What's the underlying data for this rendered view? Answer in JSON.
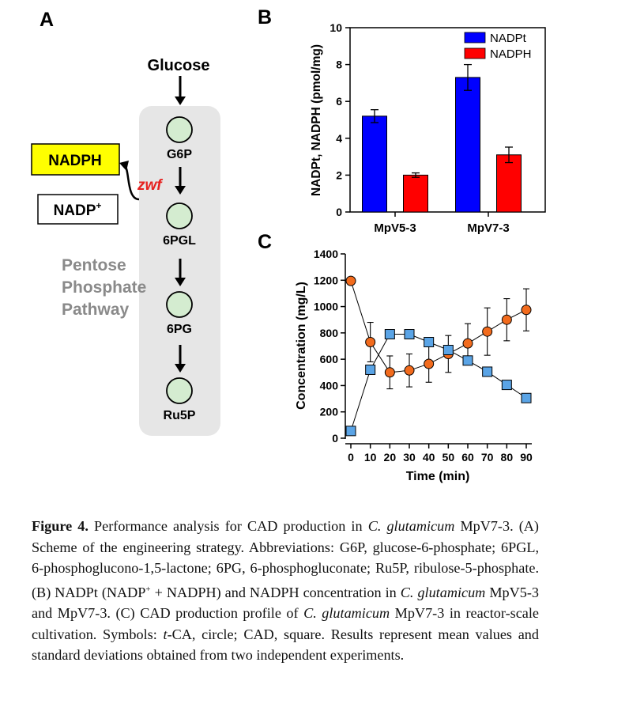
{
  "panel_a": {
    "label": "A",
    "glucose": "Glucose",
    "nodes": [
      "G6P",
      "6PGL",
      "6PG",
      "Ru5P"
    ],
    "nadph": "NADPH",
    "nadp_main": "NADP",
    "nadp_sup": "+",
    "enzyme": "zwf",
    "pathway_lines": [
      "Pentose",
      "Phosphate",
      "Pathway"
    ],
    "colors": {
      "nadph_box": "#ffff00",
      "node_fill": "#d4ecd0",
      "pathway_bg": "#e6e6e6",
      "enzyme": "#e6211f",
      "pathway_text": "#8a8a8a"
    }
  },
  "panel_b": {
    "label": "B",
    "chart_data": {
      "type": "bar",
      "categories": [
        "MpV5-3",
        "MpV7-3"
      ],
      "series": [
        {
          "name": "NADPt",
          "color": "#0000ff",
          "values": [
            5.2,
            7.3
          ],
          "errors": [
            0.35,
            0.7
          ]
        },
        {
          "name": "NADPH",
          "color": "#ff0000",
          "values": [
            2.0,
            3.1
          ],
          "errors": [
            0.12,
            0.42
          ]
        }
      ],
      "ylabel": "NADPt, NADPH (pmol/mg)",
      "xlabel": "",
      "ylim": [
        0,
        10
      ],
      "yticks": [
        "0",
        "2",
        "4",
        "6",
        "8",
        "10"
      ],
      "legend": "top-right"
    }
  },
  "panel_c": {
    "label": "C",
    "chart_data": {
      "type": "line",
      "x": [
        0,
        10,
        20,
        30,
        40,
        50,
        60,
        70,
        80,
        90
      ],
      "xticks": [
        "0",
        "10",
        "20",
        "30",
        "40",
        "50",
        "60",
        "70",
        "80",
        "90"
      ],
      "yticks": [
        "0",
        "200",
        "400",
        "600",
        "800",
        "1000",
        "1200",
        "1400"
      ],
      "xlabel": "Time (min)",
      "ylabel": "Concentration (mg/L)",
      "xlim": [
        0,
        90
      ],
      "ylim": [
        0,
        1400
      ],
      "series": [
        {
          "marker": "circle",
          "color": "#f26b1d",
          "values": [
            1195,
            730,
            500,
            515,
            565,
            640,
            720,
            810,
            900,
            975
          ],
          "errors": [
            0,
            150,
            125,
            125,
            140,
            140,
            150,
            180,
            160,
            160
          ]
        },
        {
          "marker": "square",
          "color": "#5aa4e6",
          "values": [
            55,
            520,
            790,
            790,
            730,
            670,
            590,
            505,
            405,
            305
          ],
          "errors": [
            0,
            0,
            30,
            30,
            30,
            30,
            30,
            0,
            0,
            0
          ]
        }
      ]
    }
  },
  "caption": {
    "fig_label": "Figure 4.",
    "s1": " Performance analysis for CAD production in ",
    "sp1": "C. glutamicum",
    "s2": " MpV7-3. (A) Scheme of the engineering strategy. Abbreviations: G6P, glucose-6-phosphate; 6PGL, 6-phosphoglucono-1,5-lactone; 6PG, 6-phosphogluconate; Ru5P, ribulose-5-phosphate. (B) NADPt (NADP",
    "sup": "+",
    "s3": " + NADPH) and NADPH concentration in ",
    "sp2": "C. glutamicum",
    "s4": " MpV5-3 and MpV7-3. (C) CAD production profile of ",
    "sp3": "C. glutamicum",
    "s5": " MpV7-3 in reactor-scale cultivation. Symbols: ",
    "tca": "t",
    "s6": "-CA, circle; CAD, square. Results represent mean values and standard deviations obtained from two independent experiments."
  }
}
